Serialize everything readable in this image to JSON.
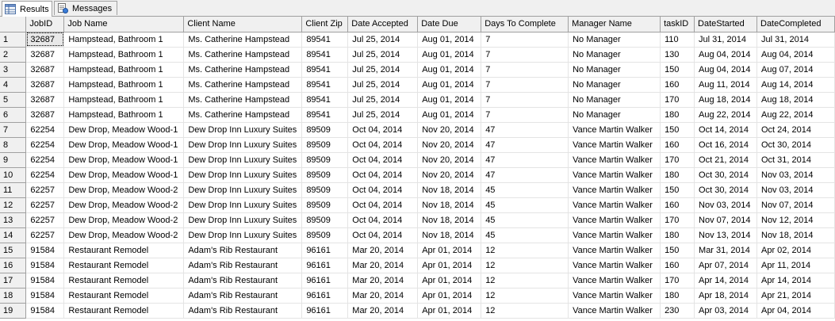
{
  "tabs": [
    {
      "label": "Results",
      "icon": "grid-icon",
      "active": true
    },
    {
      "label": "Messages",
      "icon": "messages-icon",
      "active": false
    }
  ],
  "grid": {
    "columns": [
      "JobID",
      "Job Name",
      "Client Name",
      "Client Zip",
      "Date Accepted",
      "Date Due",
      "Days To Complete",
      "Manager Name",
      "taskID",
      "DateStarted",
      "DateCompleted"
    ],
    "rows": [
      {
        "n": "1",
        "cells": [
          "32687",
          "Hampstead, Bathroom 1",
          "Ms. Catherine Hampstead",
          "89541",
          "Jul 25, 2014",
          "Aug 01, 2014",
          "7",
          "No Manager",
          "110",
          "Jul 31, 2014",
          "Jul 31, 2014"
        ]
      },
      {
        "n": "2",
        "cells": [
          "32687",
          "Hampstead, Bathroom 1",
          "Ms. Catherine Hampstead",
          "89541",
          "Jul 25, 2014",
          "Aug 01, 2014",
          "7",
          "No Manager",
          "130",
          "Aug 04, 2014",
          "Aug 04, 2014"
        ]
      },
      {
        "n": "3",
        "cells": [
          "32687",
          "Hampstead, Bathroom 1",
          "Ms. Catherine Hampstead",
          "89541",
          "Jul 25, 2014",
          "Aug 01, 2014",
          "7",
          "No Manager",
          "150",
          "Aug 04, 2014",
          "Aug 07, 2014"
        ]
      },
      {
        "n": "4",
        "cells": [
          "32687",
          "Hampstead, Bathroom 1",
          "Ms. Catherine Hampstead",
          "89541",
          "Jul 25, 2014",
          "Aug 01, 2014",
          "7",
          "No Manager",
          "160",
          "Aug 11, 2014",
          "Aug 14, 2014"
        ]
      },
      {
        "n": "5",
        "cells": [
          "32687",
          "Hampstead, Bathroom 1",
          "Ms. Catherine Hampstead",
          "89541",
          "Jul 25, 2014",
          "Aug 01, 2014",
          "7",
          "No Manager",
          "170",
          "Aug 18, 2014",
          "Aug 18, 2014"
        ]
      },
      {
        "n": "6",
        "cells": [
          "32687",
          "Hampstead, Bathroom 1",
          "Ms. Catherine Hampstead",
          "89541",
          "Jul 25, 2014",
          "Aug 01, 2014",
          "7",
          "No Manager",
          "180",
          "Aug 22, 2014",
          "Aug 22, 2014"
        ]
      },
      {
        "n": "7",
        "cells": [
          "62254",
          "Dew Drop, Meadow Wood-1",
          "Dew Drop Inn Luxury Suites",
          "89509",
          "Oct 04, 2014",
          "Nov 20, 2014",
          "47",
          "Vance Martin Walker",
          "150",
          "Oct 14, 2014",
          "Oct 24, 2014"
        ]
      },
      {
        "n": "8",
        "cells": [
          "62254",
          "Dew Drop, Meadow Wood-1",
          "Dew Drop Inn Luxury Suites",
          "89509",
          "Oct 04, 2014",
          "Nov 20, 2014",
          "47",
          "Vance Martin Walker",
          "160",
          "Oct 16, 2014",
          "Oct 30, 2014"
        ]
      },
      {
        "n": "9",
        "cells": [
          "62254",
          "Dew Drop, Meadow Wood-1",
          "Dew Drop Inn Luxury Suites",
          "89509",
          "Oct 04, 2014",
          "Nov 20, 2014",
          "47",
          "Vance Martin Walker",
          "170",
          "Oct 21, 2014",
          "Oct 31, 2014"
        ]
      },
      {
        "n": "10",
        "cells": [
          "62254",
          "Dew Drop, Meadow Wood-1",
          "Dew Drop Inn Luxury Suites",
          "89509",
          "Oct 04, 2014",
          "Nov 20, 2014",
          "47",
          "Vance Martin Walker",
          "180",
          "Oct 30, 2014",
          "Nov 03, 2014"
        ]
      },
      {
        "n": "11",
        "cells": [
          "62257",
          "Dew Drop, Meadow Wood-2",
          "Dew Drop Inn Luxury Suites",
          "89509",
          "Oct 04, 2014",
          "Nov 18, 2014",
          "45",
          "Vance Martin Walker",
          "150",
          "Oct 30, 2014",
          "Nov 03, 2014"
        ]
      },
      {
        "n": "12",
        "cells": [
          "62257",
          "Dew Drop, Meadow Wood-2",
          "Dew Drop Inn Luxury Suites",
          "89509",
          "Oct 04, 2014",
          "Nov 18, 2014",
          "45",
          "Vance Martin Walker",
          "160",
          "Nov 03, 2014",
          "Nov 07, 2014"
        ]
      },
      {
        "n": "13",
        "cells": [
          "62257",
          "Dew Drop, Meadow Wood-2",
          "Dew Drop Inn Luxury Suites",
          "89509",
          "Oct 04, 2014",
          "Nov 18, 2014",
          "45",
          "Vance Martin Walker",
          "170",
          "Nov 07, 2014",
          "Nov 12, 2014"
        ]
      },
      {
        "n": "14",
        "cells": [
          "62257",
          "Dew Drop, Meadow Wood-2",
          "Dew Drop Inn Luxury Suites",
          "89509",
          "Oct 04, 2014",
          "Nov 18, 2014",
          "45",
          "Vance Martin Walker",
          "180",
          "Nov 13, 2014",
          "Nov 18, 2014"
        ]
      },
      {
        "n": "15",
        "cells": [
          "91584",
          "Restaurant Remodel",
          "Adam's Rib Restaurant",
          "96161",
          "Mar 20, 2014",
          "Apr 01, 2014",
          "12",
          "Vance Martin Walker",
          "150",
          "Mar 31, 2014",
          "Apr 02, 2014"
        ]
      },
      {
        "n": "16",
        "cells": [
          "91584",
          "Restaurant Remodel",
          "Adam's Rib Restaurant",
          "96161",
          "Mar 20, 2014",
          "Apr 01, 2014",
          "12",
          "Vance Martin Walker",
          "160",
          "Apr 07, 2014",
          "Apr 11, 2014"
        ]
      },
      {
        "n": "17",
        "cells": [
          "91584",
          "Restaurant Remodel",
          "Adam's Rib Restaurant",
          "96161",
          "Mar 20, 2014",
          "Apr 01, 2014",
          "12",
          "Vance Martin Walker",
          "170",
          "Apr 14, 2014",
          "Apr 14, 2014"
        ]
      },
      {
        "n": "18",
        "cells": [
          "91584",
          "Restaurant Remodel",
          "Adam's Rib Restaurant",
          "96161",
          "Mar 20, 2014",
          "Apr 01, 2014",
          "12",
          "Vance Martin Walker",
          "180",
          "Apr 18, 2014",
          "Apr 21, 2014"
        ]
      },
      {
        "n": "19",
        "cells": [
          "91584",
          "Restaurant Remodel",
          "Adam's Rib Restaurant",
          "96161",
          "Mar 20, 2014",
          "Apr 01, 2014",
          "12",
          "Vance Martin Walker",
          "230",
          "Apr 03, 2014",
          "Apr 04, 2014"
        ]
      }
    ]
  }
}
